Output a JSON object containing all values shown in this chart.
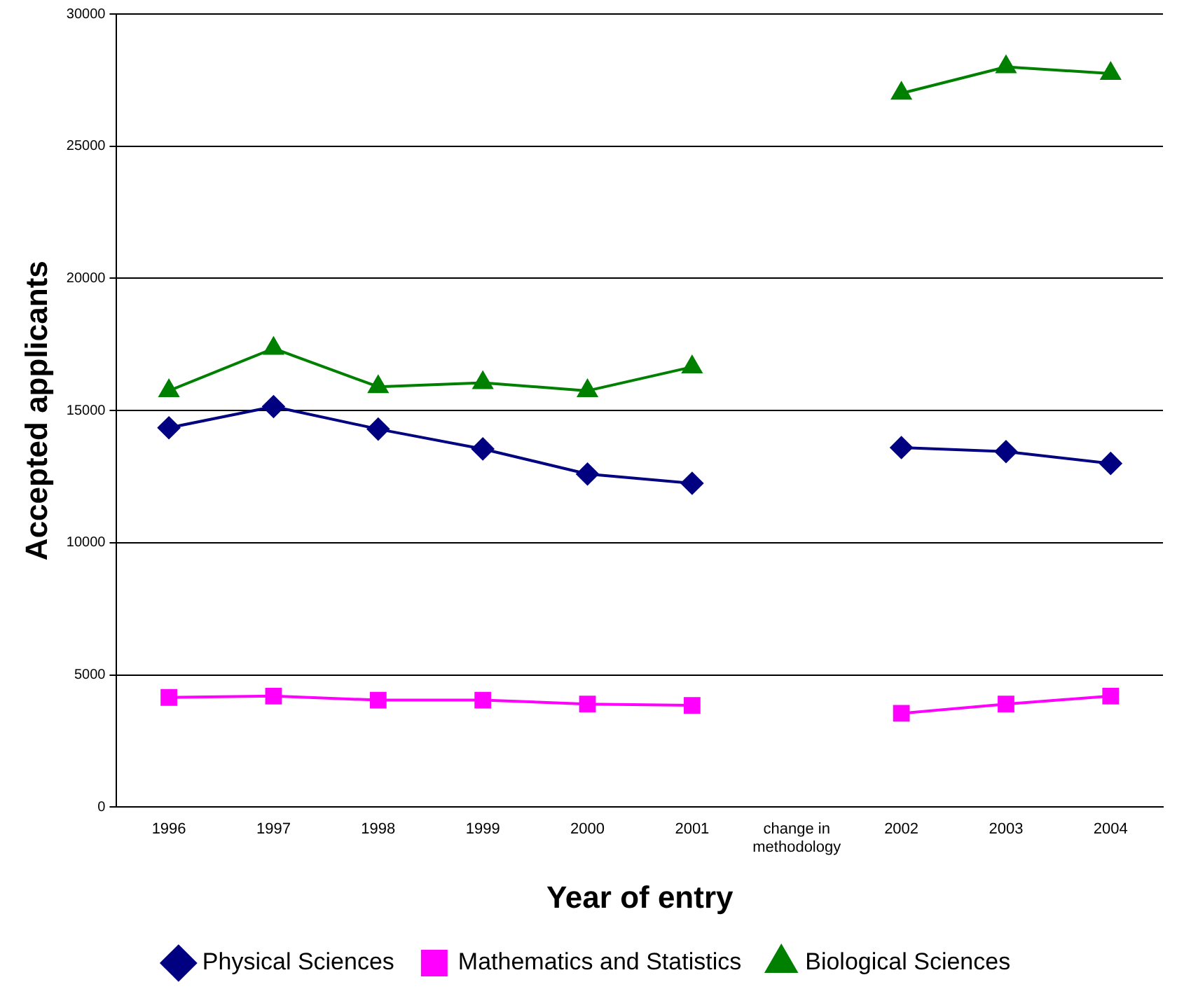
{
  "chart_data": {
    "type": "line",
    "xlabel": "Year of entry",
    "ylabel": "Accepted applicants",
    "categories": [
      "1996",
      "1997",
      "1998",
      "1999",
      "2000",
      "2001",
      "change in methodology",
      "2002",
      "2003",
      "2004"
    ],
    "ylim": [
      0,
      30000
    ],
    "yticks": [
      0,
      5000,
      10000,
      15000,
      20000,
      25000,
      30000
    ],
    "grid": "y",
    "legend": "bottom",
    "series": [
      {
        "name": "Physical Sciences",
        "color": "#000080",
        "marker": "diamond",
        "values": [
          14350,
          15150,
          14300,
          13550,
          12600,
          12250,
          null,
          13600,
          13450,
          13000
        ]
      },
      {
        "name": "Mathematics and Statistics",
        "color": "#ff00ff",
        "marker": "square",
        "values": [
          4150,
          4200,
          4050,
          4050,
          3900,
          3850,
          null,
          3550,
          3900,
          4200
        ]
      },
      {
        "name": "Biological Sciences",
        "color": "#008000",
        "marker": "triangle",
        "values": [
          15750,
          17350,
          15900,
          16050,
          15750,
          16650,
          null,
          27000,
          28000,
          27750
        ]
      }
    ]
  }
}
